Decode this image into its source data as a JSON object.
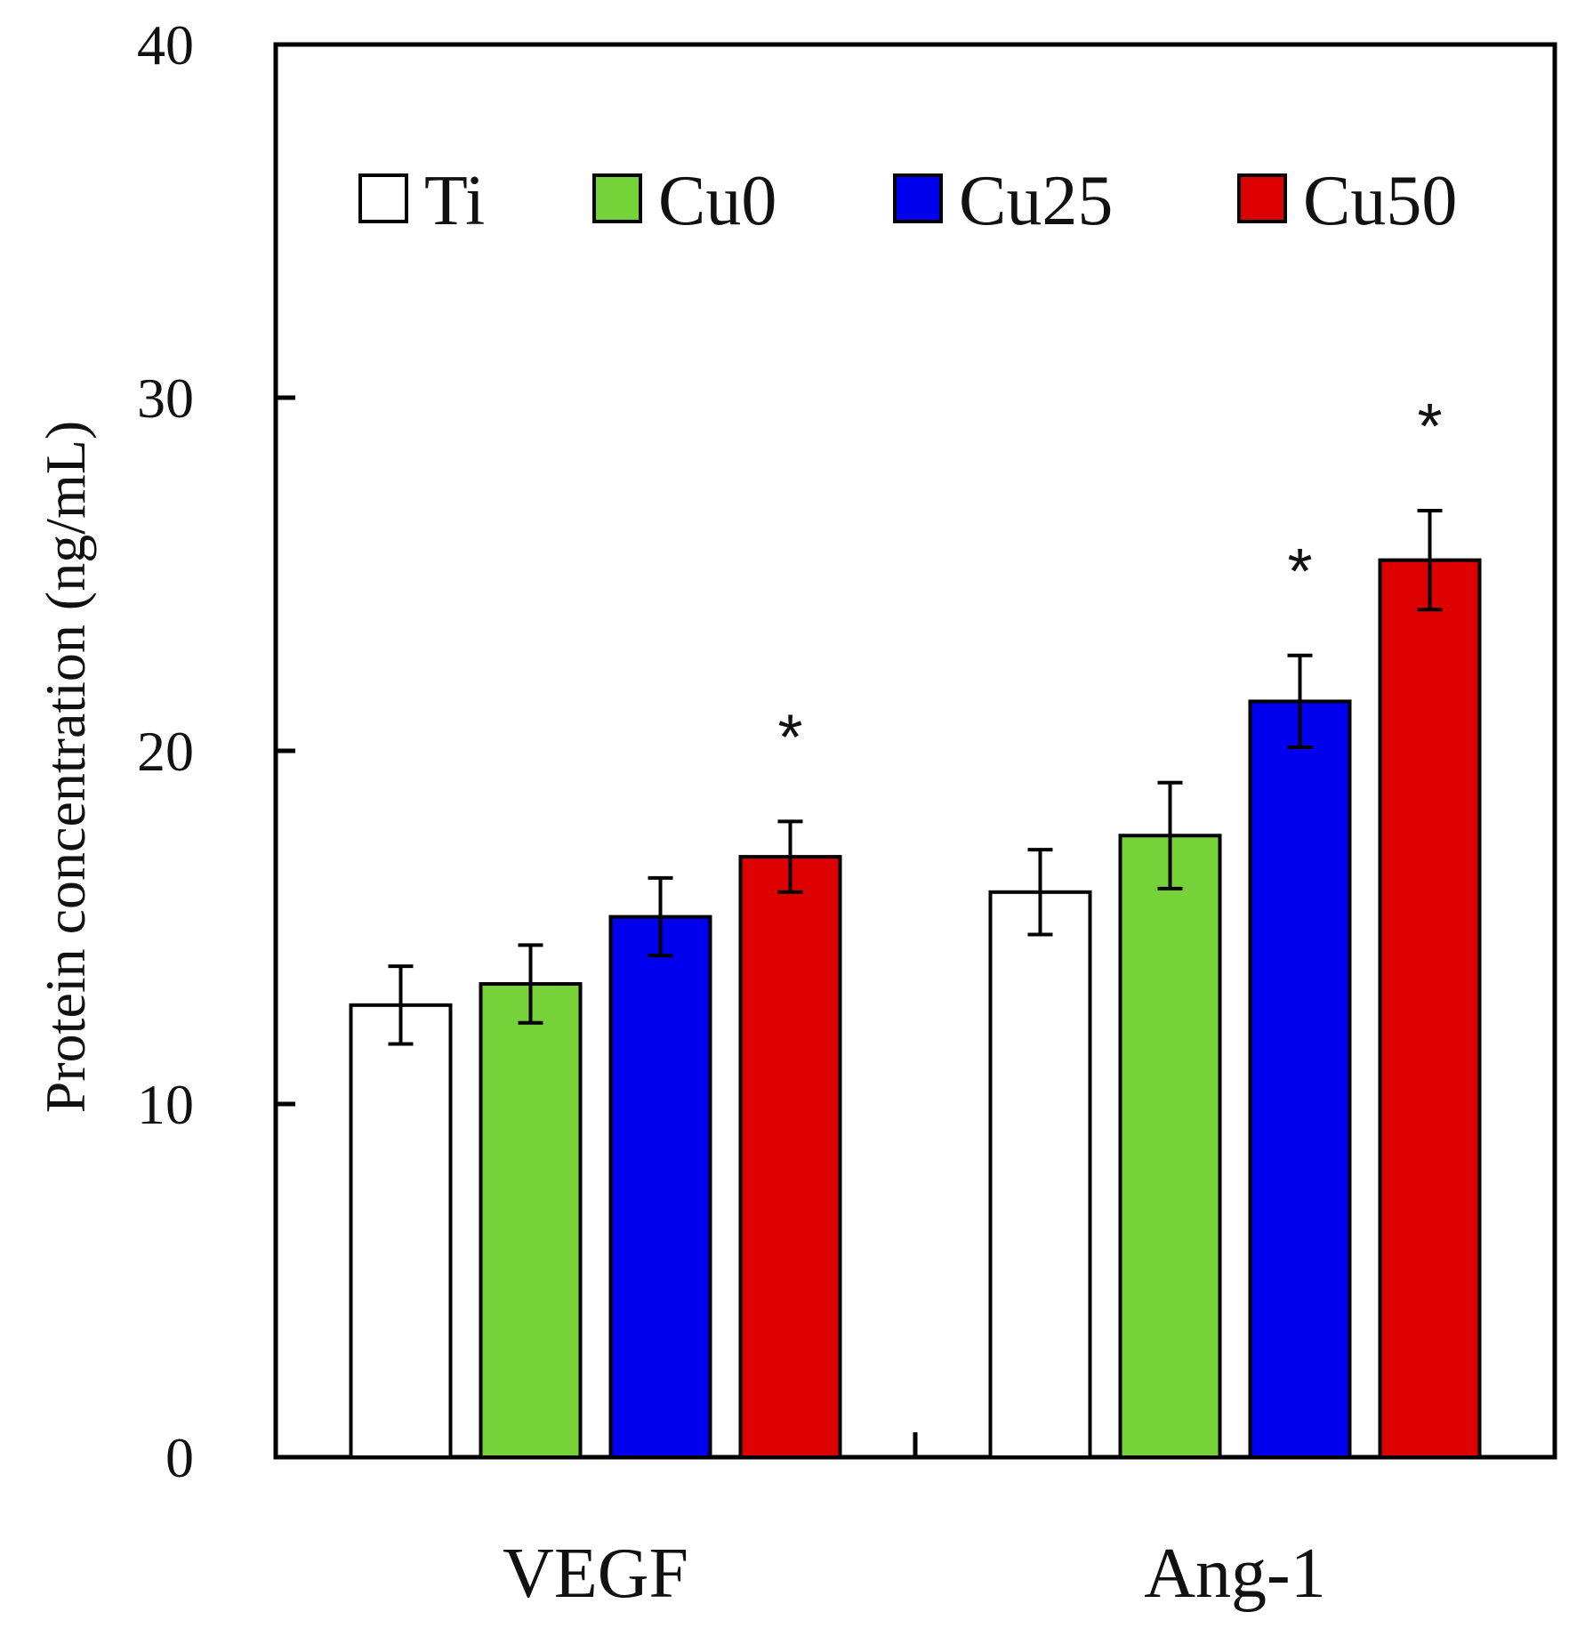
{
  "chart_data": {
    "type": "bar",
    "title": "",
    "xlabel": "",
    "ylabel": "Protein concentration (ng/mL)",
    "ylim": [
      0,
      40
    ],
    "yticks": [
      0,
      10,
      20,
      30,
      40
    ],
    "grid": false,
    "legend_position": "top",
    "categories": [
      "VEGF",
      "Ang-1"
    ],
    "series": [
      {
        "name": "Ti",
        "color": "#ffffff",
        "values": [
          12.8,
          16.0
        ],
        "errors": [
          1.1,
          1.2
        ],
        "significant": [
          false,
          false
        ]
      },
      {
        "name": "Cu0",
        "color": "#77d139",
        "values": [
          13.4,
          17.6
        ],
        "errors": [
          1.1,
          1.5
        ],
        "significant": [
          false,
          false
        ]
      },
      {
        "name": "Cu25",
        "color": "#0000ee",
        "values": [
          15.3,
          21.4
        ],
        "errors": [
          1.1,
          1.3
        ],
        "significant": [
          false,
          true
        ]
      },
      {
        "name": "Cu50",
        "color": "#dd0000",
        "values": [
          17.0,
          25.4
        ],
        "errors": [
          1.0,
          1.4
        ],
        "significant": [
          true,
          true
        ]
      }
    ],
    "significance_marker": "*"
  }
}
